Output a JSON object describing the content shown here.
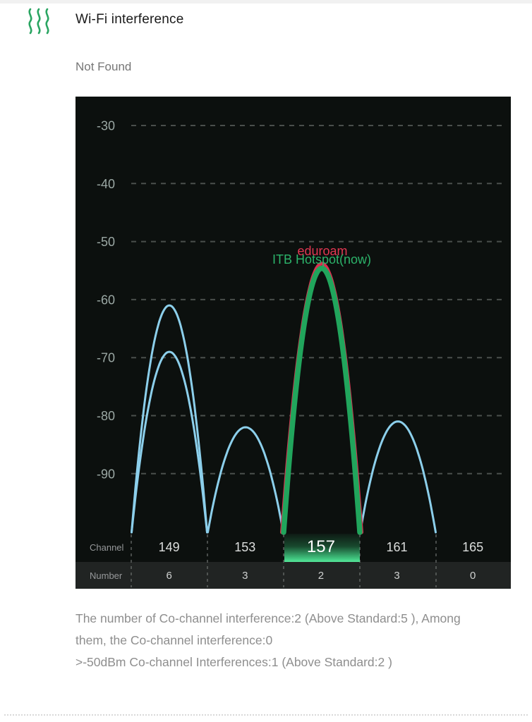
{
  "header": {
    "title": "Wi-Fi interference",
    "status": "Not Found"
  },
  "summary": {
    "lines": [
      "The number of Co-channel interference:2 (Above Standard:5 ), Among",
      "them, the Co-channel interference:0",
      ">-50dBm Co-channel Interferences:1 (Above Standard:2 )"
    ]
  },
  "colors": {
    "chart_bg": "#0c100e",
    "number_row_bg": "#212423",
    "gridline": "#4a4f4c",
    "axis_label": "#9ba8a4",
    "separator": "#6b706c",
    "curve_neighbor": "#8ccfeb",
    "curve_overlap": "#d93050",
    "curve_current": "#21a55c",
    "selected_cell": "#55e89a",
    "header_icon": "#2aa562",
    "label_overlap": "#e23752",
    "label_current": "#2cb36a"
  },
  "chart_data": {
    "type": "line",
    "title": "",
    "xlabel": "",
    "ylabel": "",
    "ylim": [
      -100,
      -25
    ],
    "y_ticks": [
      -30,
      -40,
      -50,
      -60,
      -70,
      -80,
      -90
    ],
    "grid": "dashed horizontal gridlines on dark background",
    "legend_position": "inline labels above current channel peak",
    "channels": [
      149,
      153,
      157,
      161,
      165
    ],
    "selected_channel": 157,
    "channel_row_label": "Channel",
    "number_row_label": "Number",
    "numbers": [
      6,
      3,
      2,
      3,
      0
    ],
    "curves": [
      {
        "name": "",
        "channel": 149,
        "peak_dbm": -61,
        "kind": "neighbor"
      },
      {
        "name": "",
        "channel": 149,
        "peak_dbm": -69,
        "kind": "neighbor"
      },
      {
        "name": "",
        "channel": 153,
        "peak_dbm": -82,
        "kind": "neighbor"
      },
      {
        "name": "",
        "channel": 161,
        "peak_dbm": -81,
        "kind": "neighbor"
      },
      {
        "name": "eduroam",
        "channel": 157,
        "peak_dbm": -53.8,
        "kind": "overlap"
      },
      {
        "name": "ITB Hotspot(now)",
        "channel": 157,
        "peak_dbm": -54.6,
        "kind": "current"
      }
    ]
  }
}
